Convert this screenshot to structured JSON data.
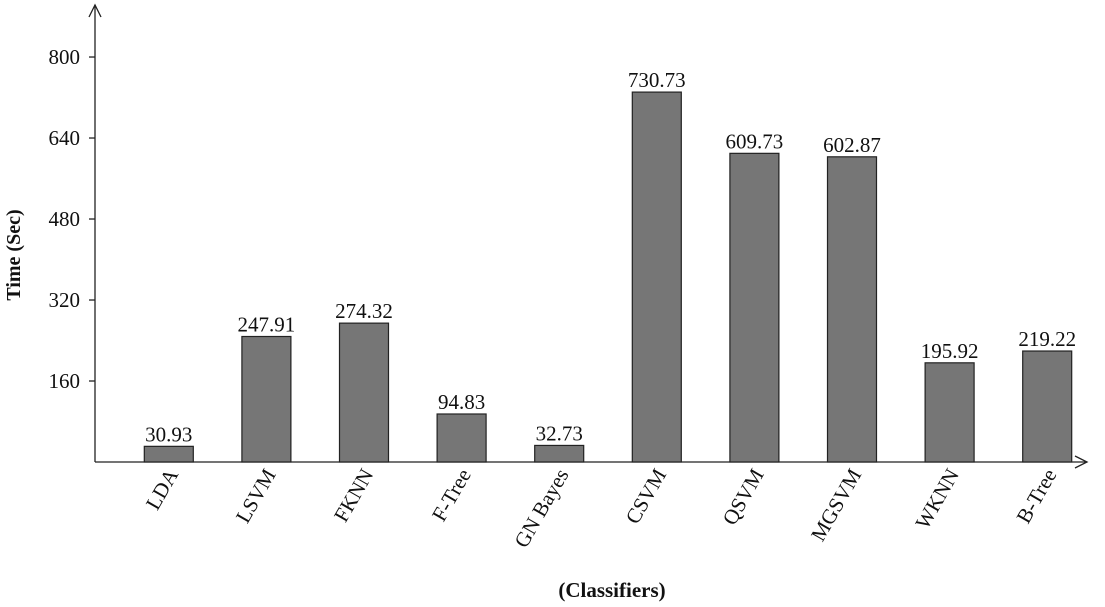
{
  "chart_data": {
    "type": "bar",
    "y_label": "Time (Sec)",
    "x_label": "(Classifiers)",
    "categories": [
      "LDA",
      "LSVM",
      "FKNN",
      "F-Tree",
      "GN Bayes",
      "CSVM",
      "QSVM",
      "MGSVM",
      "WKNN",
      "B-Tree"
    ],
    "values": [
      30.93,
      247.91,
      274.32,
      94.83,
      32.73,
      730.73,
      609.73,
      602.87,
      195.92,
      219.22
    ],
    "color": "#767676",
    "ylim": [
      0,
      900
    ],
    "yticks": [
      160,
      320,
      480,
      640,
      800
    ]
  }
}
